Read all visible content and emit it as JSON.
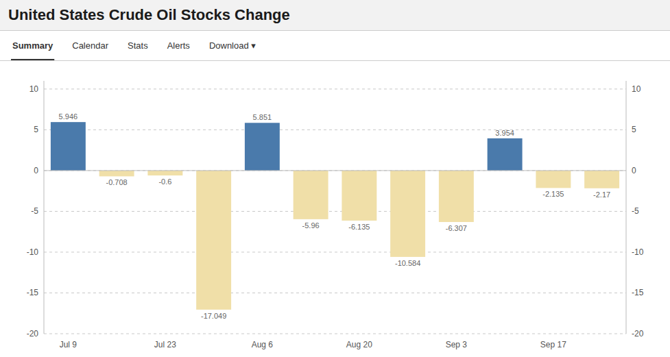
{
  "nav_tabs": [
    "Summary",
    "Calendar",
    "Stats",
    "Alerts",
    "Download ▾"
  ],
  "chart_data": {
    "type": "bar",
    "title": "United States Crude Oil Stocks Change",
    "categories": [
      "Jul 9",
      null,
      "Jul 23",
      null,
      "Aug 6",
      null,
      "Aug 20",
      null,
      "Sep 3",
      null,
      "Sep 17",
      null
    ],
    "values": [
      5.946,
      -0.708,
      -0.6,
      -17.049,
      5.851,
      -5.96,
      -6.135,
      -10.584,
      -6.307,
      3.954,
      -2.135,
      -2.17
    ],
    "colors": [
      "#4a7aab",
      "#f0dfa8",
      "#f0dfa8",
      "#f0dfa8",
      "#4a7aab",
      "#f0dfa8",
      "#f0dfa8",
      "#f0dfa8",
      "#f0dfa8",
      "#4a7aab",
      "#f0dfa8",
      "#f0dfa8"
    ],
    "ylim": [
      -20,
      11
    ],
    "yticks": [
      -20,
      -15,
      -10,
      -5,
      0,
      5,
      10
    ],
    "y2lim": [
      -20,
      11
    ],
    "y2ticks": [
      -20,
      -15,
      -10,
      -5,
      0,
      5,
      10
    ],
    "grid": true,
    "data_labels": true
  }
}
